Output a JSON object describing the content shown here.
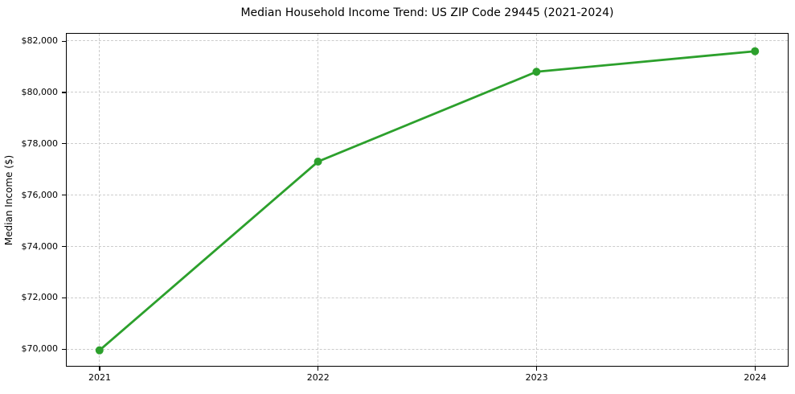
{
  "chart_data": {
    "type": "line",
    "title": "Median Household Income Trend: US ZIP Code 29445 (2021-2024)",
    "ylabel": "Median Income ($)",
    "xlabel": "",
    "x": [
      2021,
      2022,
      2023,
      2024
    ],
    "xticklabels": [
      "2021",
      "2022",
      "2023",
      "2024"
    ],
    "values": [
      69950,
      77300,
      80800,
      81600
    ],
    "yticks": [
      70000,
      72000,
      74000,
      76000,
      78000,
      80000,
      82000
    ],
    "yticklabels": [
      "$70,000",
      "$72,000",
      "$74,000",
      "$76,000",
      "$78,000",
      "$80,000",
      "$82,000"
    ],
    "xlim": [
      2020.85,
      2024.15
    ],
    "ylim": [
      69345,
      82280
    ],
    "grid": true,
    "grid_style": "dashed",
    "legend": "none",
    "marker": "circle",
    "colors": {
      "line": "#2ca02c",
      "marker": "#2ca02c",
      "grid": "#cccccc",
      "axis": "#000000",
      "text": "#000000",
      "background": "#ffffff"
    }
  }
}
